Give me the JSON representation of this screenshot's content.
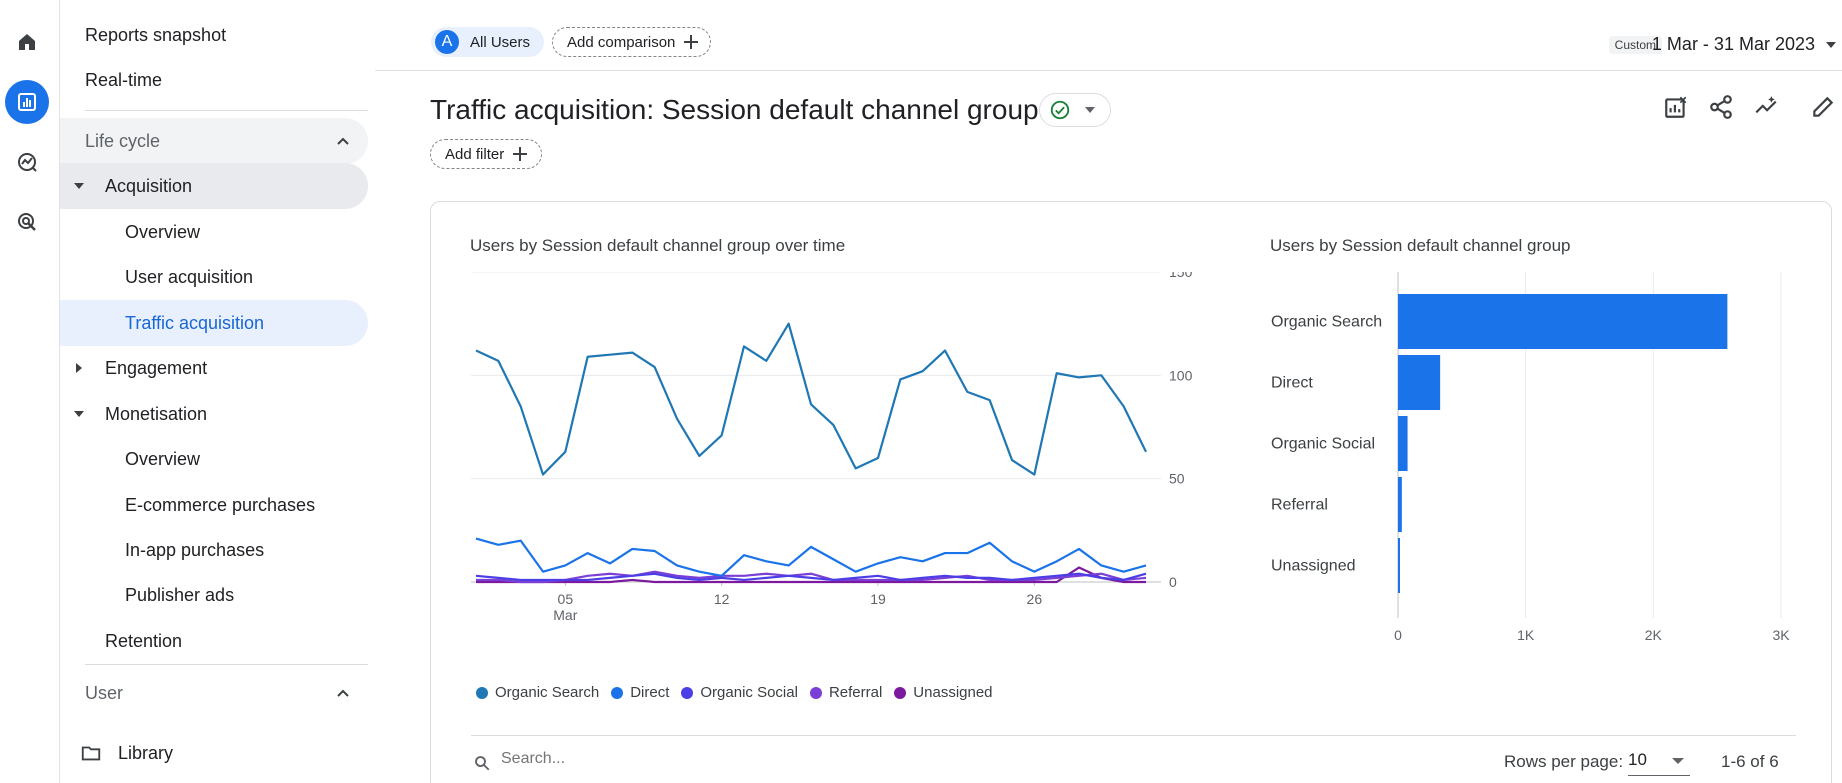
{
  "nav": {
    "reports_snapshot": "Reports snapshot",
    "realtime": "Real-time",
    "life_cycle": "Life cycle",
    "acquisition": "Acquisition",
    "acq_overview": "Overview",
    "user_acquisition": "User acquisition",
    "traffic_acquisition": "Traffic acquisition",
    "engagement": "Engagement",
    "monetisation": "Monetisation",
    "mon_overview": "Overview",
    "ecommerce": "E-commerce purchases",
    "inapp": "In-app purchases",
    "publisher_ads": "Publisher ads",
    "retention": "Retention",
    "user": "User",
    "library": "Library"
  },
  "header": {
    "user_avatar_letter": "A",
    "all_users": "All Users",
    "add_comparison": "Add comparison",
    "date_tag": "Custom",
    "date_range": "1 Mar - 31 Mar 2023"
  },
  "page": {
    "title": "Traffic acquisition: Session default channel group",
    "add_filter": "Add filter"
  },
  "icons": {
    "home": "home-icon",
    "reports": "reports-icon",
    "explore": "explore-icon",
    "advertising": "advertising-icon",
    "status": "check-circle-icon",
    "customize": "customize-report-icon",
    "share": "share-icon",
    "insights": "insights-icon",
    "edit": "edit-icon"
  },
  "colors": {
    "accent": "#1a73e8",
    "organic_search": "#1f77b4",
    "direct": "#1a73e8",
    "organic_social": "#4b3ee6",
    "referral": "#7b3fd6",
    "unassigned": "#7b1a9e"
  },
  "table": {
    "search_placeholder": "Search...",
    "rows_per_page_label": "Rows per page:",
    "rows_per_page_value": "10",
    "page_count": "1-6 of 6"
  },
  "chart_data": [
    {
      "type": "line",
      "title": "Users by Session default channel group over time",
      "x": [
        1,
        2,
        3,
        4,
        5,
        6,
        7,
        8,
        9,
        10,
        11,
        12,
        13,
        14,
        15,
        16,
        17,
        18,
        19,
        20,
        21,
        22,
        23,
        24,
        25,
        26,
        27,
        28,
        29,
        30,
        31
      ],
      "x_tick_labels": [
        {
          "x": 5,
          "label": "05",
          "sub": "Mar"
        },
        {
          "x": 12,
          "label": "12"
        },
        {
          "x": 19,
          "label": "19"
        },
        {
          "x": 26,
          "label": "26"
        }
      ],
      "ylim": [
        0,
        150
      ],
      "y_ticks": [
        0,
        50,
        100,
        150
      ],
      "y_axis_side": "right",
      "grid": true,
      "legend": "bottom",
      "series": [
        {
          "name": "Organic Search",
          "color": "#1f77b4",
          "values": [
            112,
            107,
            85,
            52,
            63,
            109,
            110,
            111,
            104,
            79,
            61,
            71,
            114,
            107,
            125,
            86,
            76,
            55,
            60,
            98,
            102,
            112,
            92,
            88,
            59,
            52,
            101,
            99,
            100,
            85,
            63
          ]
        },
        {
          "name": "Direct",
          "color": "#1a73e8",
          "values": [
            21,
            18,
            20,
            5,
            8,
            14,
            9,
            16,
            15,
            8,
            5,
            3,
            13,
            10,
            8,
            17,
            11,
            5,
            9,
            12,
            10,
            14,
            14,
            19,
            10,
            5,
            10,
            16,
            8,
            5,
            8
          ]
        },
        {
          "name": "Organic Social",
          "color": "#4b3ee6",
          "values": [
            3,
            2,
            1,
            1,
            1,
            1,
            2,
            3,
            4,
            2,
            1,
            2,
            1,
            2,
            3,
            2,
            1,
            2,
            3,
            1,
            2,
            3,
            2,
            2,
            1,
            2,
            3,
            4,
            2,
            1,
            4
          ]
        },
        {
          "name": "Referral",
          "color": "#7b3fd6",
          "values": [
            1,
            1,
            0,
            0,
            1,
            3,
            4,
            3,
            5,
            3,
            2,
            3,
            3,
            4,
            3,
            4,
            1,
            1,
            1,
            1,
            1,
            2,
            3,
            1,
            1,
            1,
            2,
            3,
            4,
            1,
            2
          ]
        },
        {
          "name": "Unassigned",
          "color": "#7b1a9e",
          "values": [
            0,
            0,
            0,
            0,
            0,
            0,
            0,
            1,
            0,
            0,
            0,
            0,
            0,
            0,
            0,
            0,
            0,
            0,
            0,
            0,
            0,
            0,
            0,
            0,
            0,
            0,
            0,
            7,
            2,
            0,
            0
          ]
        }
      ]
    },
    {
      "type": "bar",
      "orientation": "horizontal",
      "title": "Users by Session default channel group",
      "categories": [
        "Organic Search",
        "Direct",
        "Organic Social",
        "Referral",
        "Unassigned"
      ],
      "values": [
        2580,
        330,
        75,
        30,
        10
      ],
      "xlim": [
        0,
        3000
      ],
      "x_ticks": [
        {
          "value": 0,
          "label": "0"
        },
        {
          "value": 1000,
          "label": "1K"
        },
        {
          "value": 2000,
          "label": "2K"
        },
        {
          "value": 3000,
          "label": "3K"
        }
      ],
      "color": "#1a73e8",
      "grid": true
    }
  ]
}
